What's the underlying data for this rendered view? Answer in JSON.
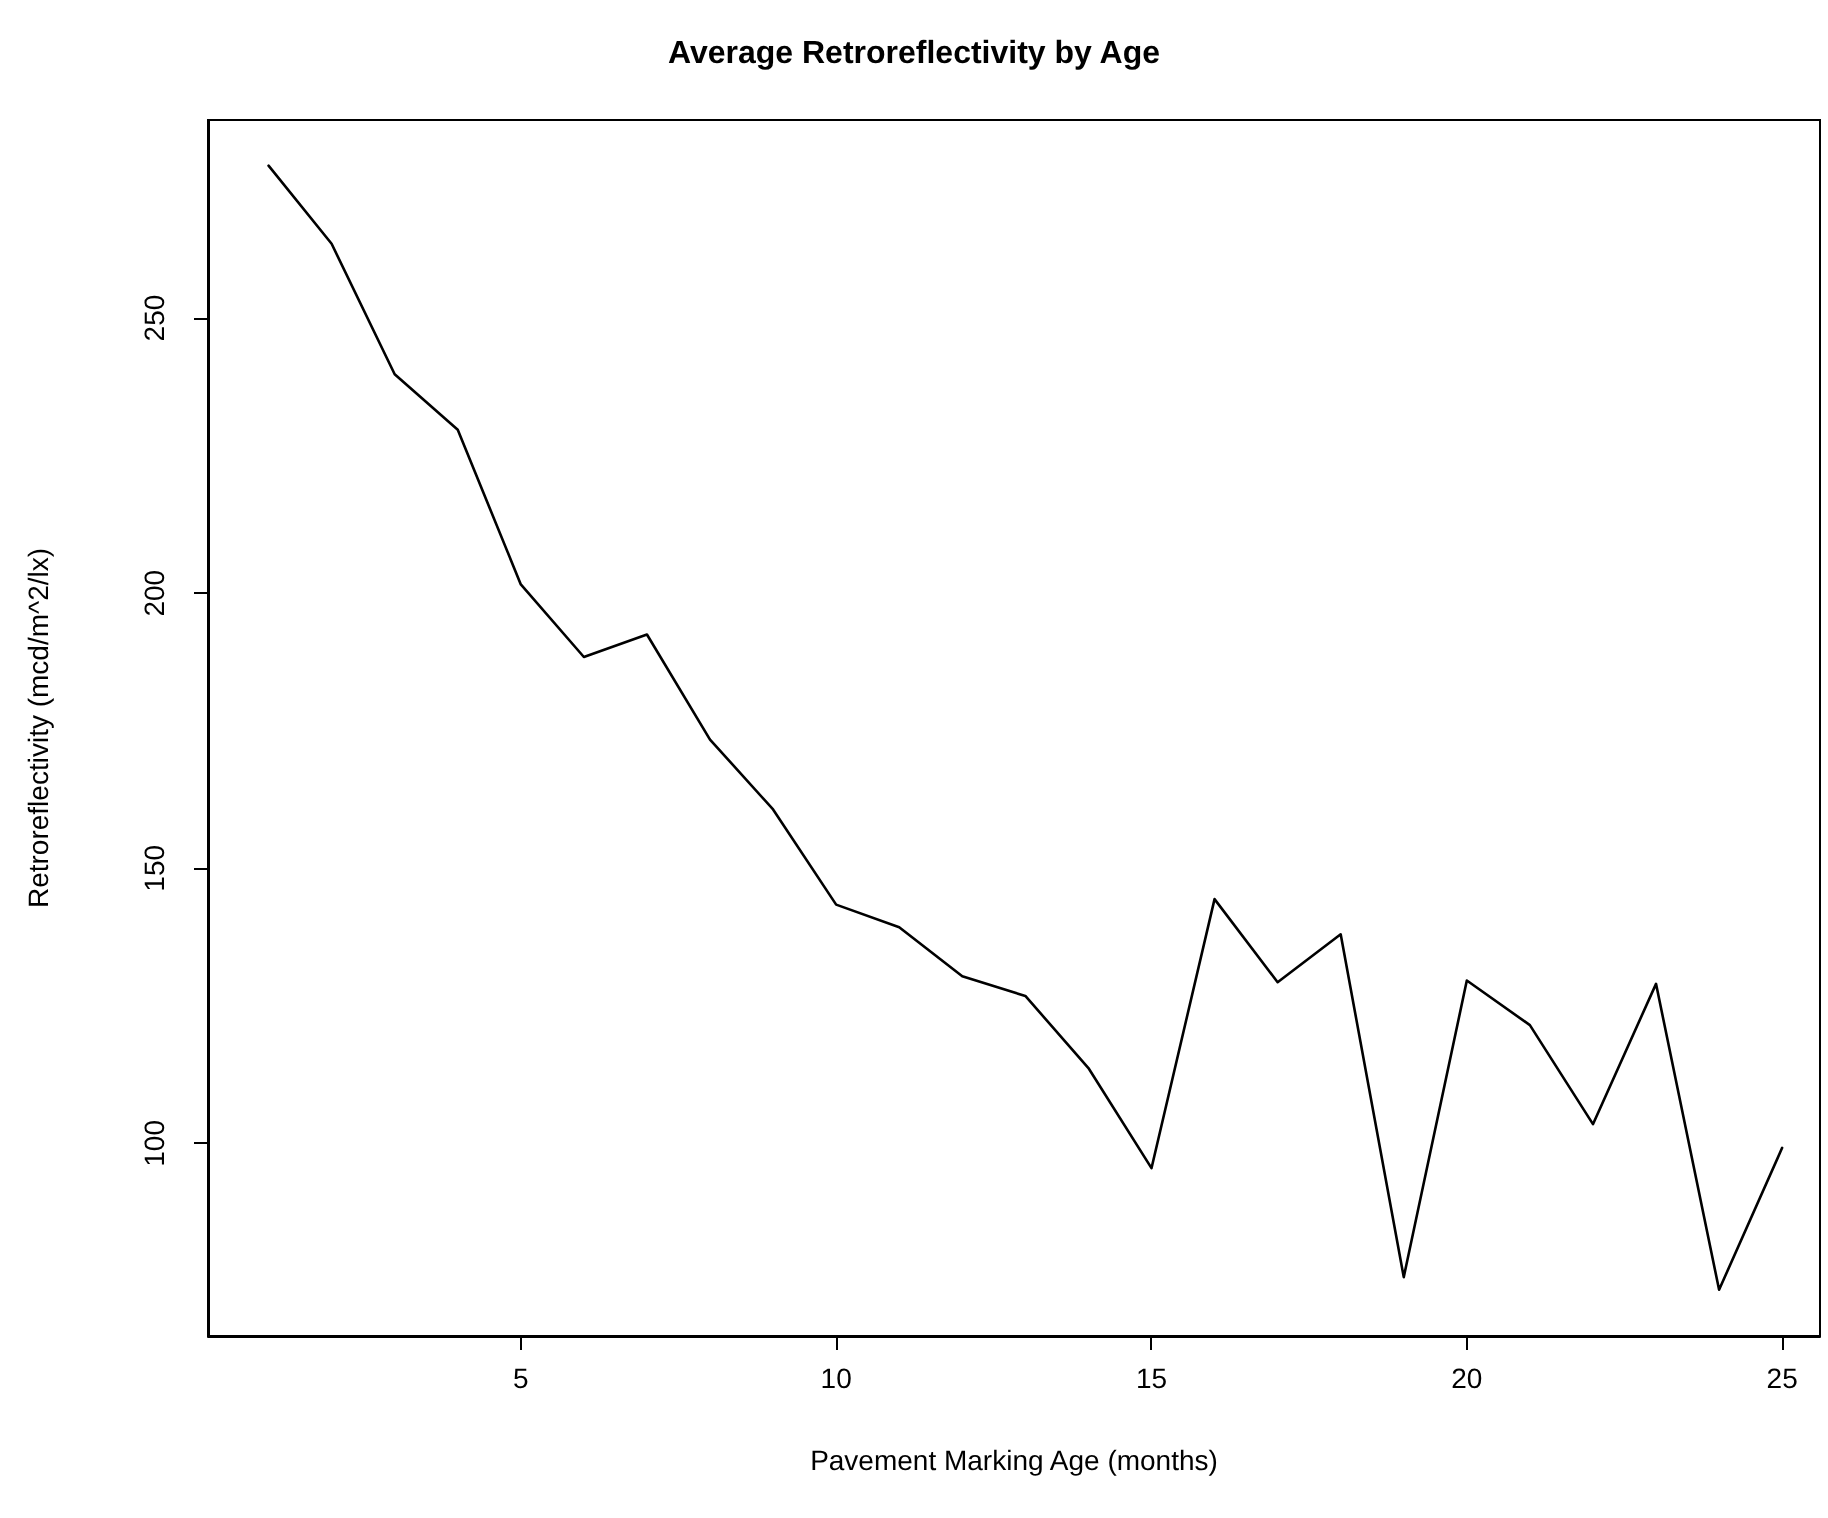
{
  "chart_data": {
    "type": "line",
    "title": "Average Retroreflectivity by Age",
    "xlabel": "Pavement Marking Age (months)",
    "ylabel": "Retroreflectivity (mcd/m^2/lx)",
    "x": [
      1,
      2,
      3,
      4,
      5,
      6,
      7,
      8,
      9,
      10,
      11,
      12,
      13,
      14,
      15,
      16,
      17,
      18,
      19,
      20,
      21,
      22,
      23,
      24,
      25
    ],
    "series": [
      {
        "color": "#000000",
        "values": [
          277.7,
          263.5,
          239.8,
          229.7,
          201.6,
          188.4,
          192.5,
          173.4,
          160.7,
          143.4,
          139.3,
          130.4,
          126.8,
          113.7,
          95.5,
          144.4,
          129.3,
          138.0,
          75.7,
          129.6,
          121.5,
          103.5,
          129.0,
          73.4,
          99.2
        ]
      }
    ],
    "xlim": [
      0.04,
      25.6
    ],
    "ylim": [
      65,
      286
    ],
    "xticks": [
      5,
      10,
      15,
      20,
      25
    ],
    "yticks": [
      100,
      150,
      200,
      250
    ],
    "marker": "none",
    "line_style": "solid"
  }
}
